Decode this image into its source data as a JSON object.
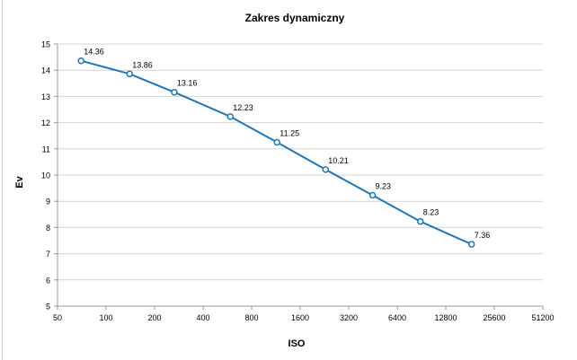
{
  "chart_data": {
    "type": "line",
    "title": "Zakres dynamiczny",
    "xlabel": "ISO",
    "ylabel": "Ev",
    "x_scale": "log2",
    "x_ticks": [
      "50",
      "100",
      "200",
      "400",
      "800",
      "1600",
      "3200",
      "6400",
      "12800",
      "25600",
      "51200"
    ],
    "xlim": [
      50,
      51200
    ],
    "ylim": [
      5,
      15
    ],
    "y_ticks": [
      "5",
      "6",
      "7",
      "8",
      "9",
      "10",
      "11",
      "12",
      "13",
      "14",
      "15"
    ],
    "grid": true,
    "legend": "none",
    "series": [
      {
        "x": [
          70,
          140,
          265,
          590,
          1150,
          2300,
          4500,
          8900,
          18500
        ],
        "values": [
          14.36,
          13.86,
          13.16,
          12.23,
          11.25,
          10.21,
          9.23,
          8.23,
          7.36
        ],
        "labels": [
          "14.36",
          "13.86",
          "13.16",
          "12.23",
          "11.25",
          "10.21",
          "9.23",
          "8.23",
          "7.36"
        ],
        "color": "#1f77b4"
      }
    ]
  }
}
